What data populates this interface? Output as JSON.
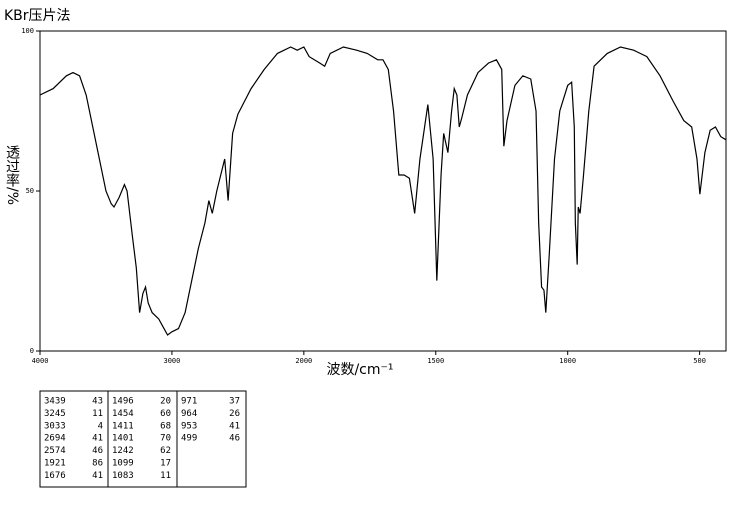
{
  "chart_data": {
    "type": "line",
    "title": "KBr压片法",
    "x_label": "波数/cm⁻¹",
    "y_label": "透过率/%",
    "xlim": [
      4000,
      400
    ],
    "xticks": [
      4000,
      3000,
      2000,
      1500,
      1000,
      500
    ],
    "ylim": [
      0,
      100
    ],
    "yticks": [
      0,
      50,
      100
    ],
    "x": [
      4000,
      3900,
      3800,
      3750,
      3700,
      3650,
      3600,
      3550,
      3500,
      3460,
      3439,
      3400,
      3360,
      3340,
      3300,
      3270,
      3245,
      3220,
      3200,
      3180,
      3150,
      3100,
      3060,
      3033,
      3000,
      2950,
      2900,
      2850,
      2800,
      2750,
      2720,
      2694,
      2660,
      2630,
      2600,
      2574,
      2540,
      2500,
      2450,
      2400,
      2300,
      2200,
      2100,
      2050,
      2000,
      1980,
      1940,
      1921,
      1900,
      1850,
      1800,
      1760,
      1720,
      1700,
      1680,
      1660,
      1640,
      1620,
      1600,
      1580,
      1560,
      1530,
      1510,
      1496,
      1480,
      1470,
      1454,
      1440,
      1430,
      1420,
      1411,
      1401,
      1380,
      1340,
      1300,
      1270,
      1250,
      1242,
      1230,
      1200,
      1170,
      1140,
      1120,
      1110,
      1099,
      1090,
      1083,
      1070,
      1050,
      1030,
      1000,
      985,
      975,
      971,
      964,
      960,
      953,
      940,
      920,
      900,
      850,
      800,
      750,
      700,
      650,
      600,
      560,
      530,
      510,
      499,
      480,
      460,
      440,
      420,
      400
    ],
    "series": [
      {
        "color": "#000000",
        "values": [
          80,
          82,
          86,
          87,
          86,
          80,
          70,
          60,
          50,
          46,
          45,
          48,
          52,
          50,
          36,
          26,
          12,
          18,
          20,
          15,
          12,
          10,
          7,
          5,
          6,
          7,
          12,
          22,
          32,
          40,
          47,
          43,
          50,
          55,
          60,
          47,
          68,
          74,
          78,
          82,
          88,
          93,
          95,
          94,
          95,
          92,
          90,
          89,
          93,
          95,
          94,
          93,
          91,
          91,
          88,
          75,
          55,
          55,
          54,
          43,
          60,
          77,
          60,
          22,
          55,
          68,
          62,
          75,
          82,
          80,
          70,
          73,
          80,
          87,
          90,
          91,
          88,
          64,
          72,
          83,
          86,
          85,
          75,
          40,
          20,
          19,
          12,
          30,
          60,
          75,
          83,
          84,
          70,
          40,
          27,
          45,
          43,
          55,
          75,
          89,
          93,
          95,
          94,
          92,
          86,
          78,
          72,
          70,
          60,
          49,
          62,
          69,
          70,
          67,
          66
        ]
      }
    ]
  },
  "peak_table": {
    "columns": [
      [
        [
          3439,
          43
        ],
        [
          3245,
          11
        ],
        [
          3033,
          4
        ],
        [
          2694,
          41
        ],
        [
          2574,
          46
        ],
        [
          1921,
          86
        ],
        [
          1676,
          41
        ]
      ],
      [
        [
          1496,
          20
        ],
        [
          1454,
          60
        ],
        [
          1411,
          68
        ],
        [
          1401,
          70
        ],
        [
          1242,
          62
        ],
        [
          1099,
          17
        ],
        [
          1083,
          11
        ]
      ],
      [
        [
          971,
          37
        ],
        [
          964,
          26
        ],
        [
          953,
          41
        ],
        [
          499,
          46
        ]
      ]
    ]
  }
}
